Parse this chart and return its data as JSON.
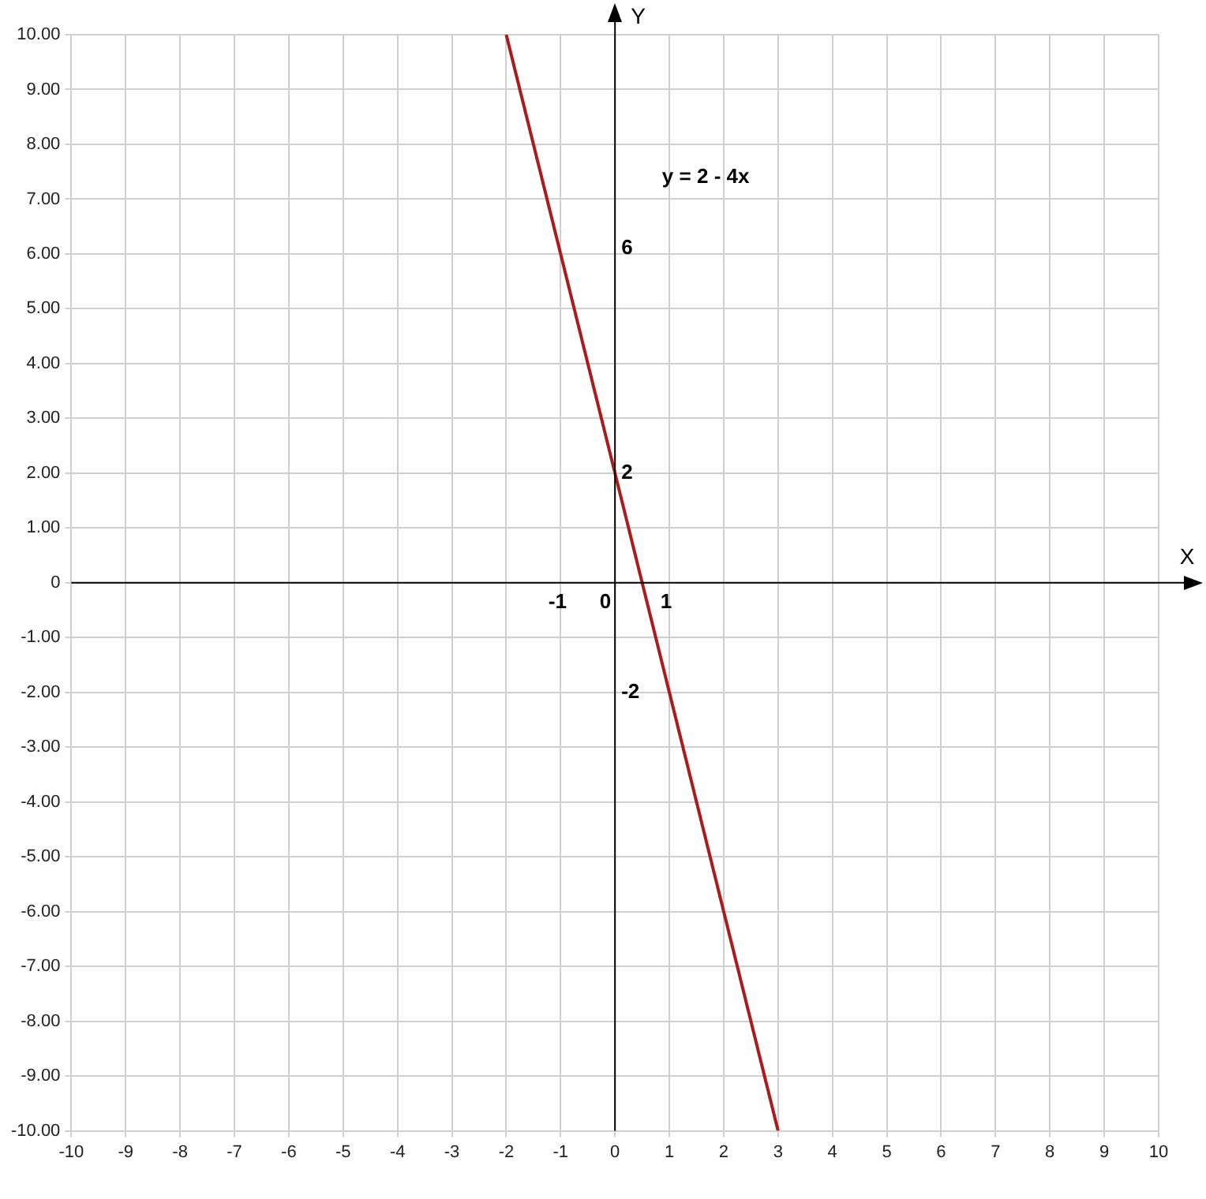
{
  "chart_data": {
    "type": "line",
    "xlabel": "X",
    "ylabel": "Y",
    "x": [
      -2,
      3
    ],
    "series": [
      {
        "color": "#a81c1c",
        "values": [
          10,
          -10
        ]
      }
    ],
    "xlim": [
      -10,
      10
    ],
    "xticks": [
      -10,
      -9,
      -8,
      -7,
      -6,
      -5,
      -4,
      -3,
      -2,
      -1,
      0,
      1,
      2,
      3,
      4,
      5,
      6,
      7,
      8,
      9,
      10
    ],
    "ylim": [
      -10,
      10
    ],
    "yticks": [
      {
        "value": -10,
        "label": "-10.00"
      },
      {
        "value": -9,
        "label": "-9.00"
      },
      {
        "value": -8,
        "label": "-8.00"
      },
      {
        "value": -7,
        "label": "-7.00"
      },
      {
        "value": -6,
        "label": "-6.00"
      },
      {
        "value": -5,
        "label": "-5.00"
      },
      {
        "value": -4,
        "label": "-4.00"
      },
      {
        "value": -3,
        "label": "-3.00"
      },
      {
        "value": -2,
        "label": "-2.00"
      },
      {
        "value": -1,
        "label": "-1.00"
      },
      {
        "value": 0,
        "label": "0"
      },
      {
        "value": 1,
        "label": "1.00"
      },
      {
        "value": 2,
        "label": "2.00"
      },
      {
        "value": 3,
        "label": "3.00"
      },
      {
        "value": 4,
        "label": "4.00"
      },
      {
        "value": 5,
        "label": "5.00"
      },
      {
        "value": 6,
        "label": "6.00"
      },
      {
        "value": 7,
        "label": "7.00"
      },
      {
        "value": 8,
        "label": "8.00"
      },
      {
        "value": 9,
        "label": "9.00"
      },
      {
        "value": 10,
        "label": "10.00"
      }
    ],
    "grid": true,
    "legend": false,
    "marker": "none",
    "line_style": "solid",
    "annotations": [
      "y = 2 - 4x",
      "6",
      "2",
      "-2",
      "-1",
      "0",
      "1"
    ]
  }
}
